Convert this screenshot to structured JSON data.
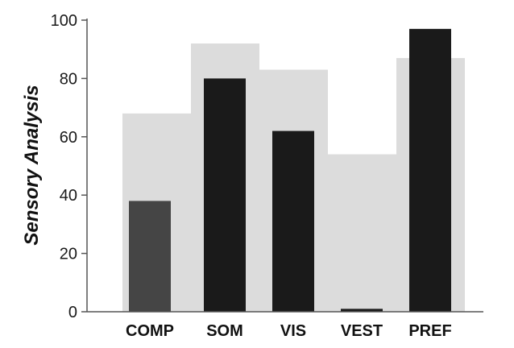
{
  "chart_data": {
    "type": "bar",
    "title": "",
    "xlabel": "",
    "ylabel": "Sensory Analysis",
    "ylim": [
      0,
      100
    ],
    "yticks": [
      0,
      20,
      40,
      60,
      80,
      100
    ],
    "grid": false,
    "categories": [
      "COMP",
      "SOM",
      "VIS",
      "VEST",
      "PREF"
    ],
    "series": [
      {
        "values": [
          68,
          92,
          83,
          54,
          87
        ],
        "color": "#dcdcdc"
      },
      {
        "values": [
          38,
          80,
          62,
          1,
          97
        ],
        "colors": [
          "#454545",
          "#1a1a1a",
          "#1a1a1a",
          "#1a1a1a",
          "#1a1a1a"
        ]
      }
    ]
  }
}
